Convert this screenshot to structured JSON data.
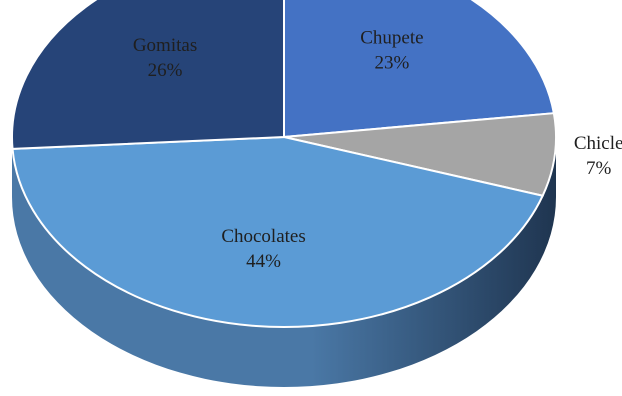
{
  "chart_data": {
    "type": "pie",
    "style": "3d",
    "slices": [
      {
        "label": "Chupete",
        "value": 23,
        "value_text": "23%",
        "color": "#4472c4"
      },
      {
        "label": "Chicle",
        "value": 7,
        "value_text": "7%",
        "color": "#a5a5a5"
      },
      {
        "label": "Chocolates",
        "value": 44,
        "value_text": "44%",
        "color": "#5b9bd5"
      },
      {
        "label": "Gomitas",
        "value": 26,
        "value_text": "26%",
        "color": "#264478"
      }
    ],
    "label_color": "#1f1f1f",
    "outline_color": "#ffffff",
    "side_color_dark": "#1f3550",
    "side_color_light": "#4a78a6"
  }
}
